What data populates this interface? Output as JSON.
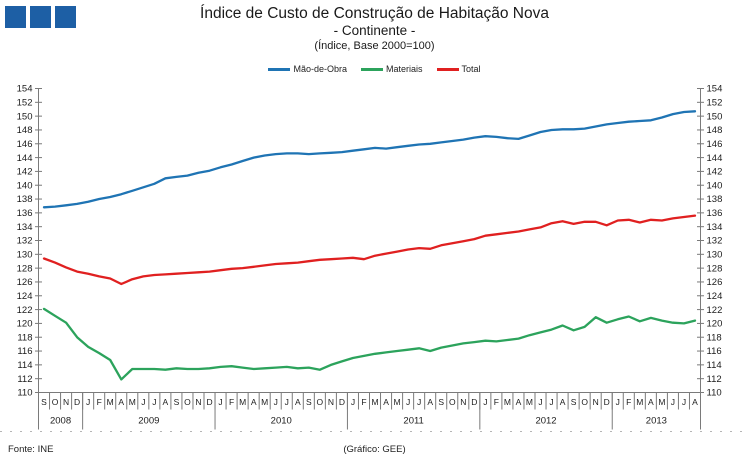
{
  "logo": {
    "color": "#1d5fa5",
    "squares": 3
  },
  "title": {
    "line1": "Índice de Custo de Construção de Habitação Nova",
    "line2": "- Continente -",
    "line3": "(Índice, Base 2000=100)"
  },
  "legend": [
    {
      "label": "Mão-de-Obra",
      "color": "#1f74b4"
    },
    {
      "label": "Materiais",
      "color": "#2ca35c"
    },
    {
      "label": "Total",
      "color": "#e02020"
    }
  ],
  "footer": {
    "source": "Fonte: INE",
    "credit": "(Gráfico: GEE)"
  },
  "chart_data": {
    "type": "line",
    "title": "Índice de Custo de Construção de Habitação Nova - Continente",
    "subtitle": "(Índice, Base 2000=100)",
    "xlabel": "",
    "ylabel": "",
    "ylim": [
      110,
      154
    ],
    "ytick_step": 2,
    "grid": false,
    "legend_position": "top",
    "x_start": "2008-09",
    "x_end": "2013-08",
    "month_labels": [
      "S",
      "O",
      "N",
      "D",
      "J",
      "F",
      "M",
      "A",
      "M",
      "J",
      "J",
      "A",
      "S",
      "O",
      "N",
      "D",
      "J",
      "F",
      "M",
      "A",
      "M",
      "J",
      "J",
      "A",
      "S",
      "O",
      "N",
      "D",
      "J",
      "F",
      "M",
      "A",
      "M",
      "J",
      "J",
      "A",
      "S",
      "O",
      "N",
      "D",
      "J",
      "F",
      "M",
      "A",
      "M",
      "J",
      "J",
      "A",
      "S",
      "O",
      "N",
      "D",
      "J",
      "F",
      "M",
      "A",
      "M",
      "J",
      "J",
      "A"
    ],
    "year_groups": [
      {
        "label": "2008",
        "months": 4
      },
      {
        "label": "2009",
        "months": 12
      },
      {
        "label": "2010",
        "months": 12
      },
      {
        "label": "2011",
        "months": 12
      },
      {
        "label": "2012",
        "months": 12
      },
      {
        "label": "2013",
        "months": 8
      }
    ],
    "series": [
      {
        "name": "Mão-de-Obra",
        "color": "#1f74b4",
        "values": [
          136.8,
          136.9,
          137.1,
          137.3,
          137.6,
          138.0,
          138.3,
          138.7,
          139.2,
          139.7,
          140.2,
          141.0,
          141.2,
          141.4,
          141.8,
          142.1,
          142.6,
          143.0,
          143.5,
          144.0,
          144.3,
          144.5,
          144.6,
          144.6,
          144.5,
          144.6,
          144.7,
          144.8,
          145.0,
          145.2,
          145.4,
          145.3,
          145.5,
          145.7,
          145.9,
          146.0,
          146.2,
          146.4,
          146.6,
          146.9,
          147.1,
          147.0,
          146.8,
          146.7,
          147.2,
          147.7,
          148.0,
          148.1,
          148.1,
          148.2,
          148.5,
          148.8,
          149.0,
          149.2,
          149.3,
          149.4,
          149.8,
          150.3,
          150.6,
          150.7
        ]
      },
      {
        "name": "Materiais",
        "color": "#2ca35c",
        "values": [
          122.1,
          121.1,
          120.1,
          118.0,
          116.6,
          115.7,
          114.7,
          111.9,
          113.4,
          113.4,
          113.4,
          113.3,
          113.5,
          113.4,
          113.4,
          113.5,
          113.7,
          113.8,
          113.6,
          113.4,
          113.5,
          113.6,
          113.7,
          113.5,
          113.6,
          113.3,
          114.0,
          114.5,
          115.0,
          115.3,
          115.6,
          115.8,
          116.0,
          116.2,
          116.4,
          116.0,
          116.5,
          116.8,
          117.1,
          117.3,
          117.5,
          117.4,
          117.6,
          117.8,
          118.3,
          118.7,
          119.1,
          119.7,
          119.0,
          119.5,
          120.9,
          120.1,
          120.6,
          121.0,
          120.3,
          120.8,
          120.4,
          120.1,
          120.0,
          120.4
        ]
      },
      {
        "name": "Total",
        "color": "#e02020",
        "values": [
          129.4,
          128.8,
          128.1,
          127.5,
          127.2,
          126.8,
          126.5,
          125.7,
          126.4,
          126.8,
          127.0,
          127.1,
          127.2,
          127.3,
          127.4,
          127.5,
          127.7,
          127.9,
          128.0,
          128.2,
          128.4,
          128.6,
          128.7,
          128.8,
          129.0,
          129.2,
          129.3,
          129.4,
          129.5,
          129.3,
          129.8,
          130.1,
          130.4,
          130.7,
          130.9,
          130.8,
          131.3,
          131.6,
          131.9,
          132.2,
          132.7,
          132.9,
          133.1,
          133.3,
          133.6,
          133.9,
          134.5,
          134.8,
          134.4,
          134.7,
          134.7,
          134.2,
          134.9,
          135.0,
          134.6,
          135.0,
          134.9,
          135.2,
          135.4,
          135.6
        ]
      }
    ]
  }
}
